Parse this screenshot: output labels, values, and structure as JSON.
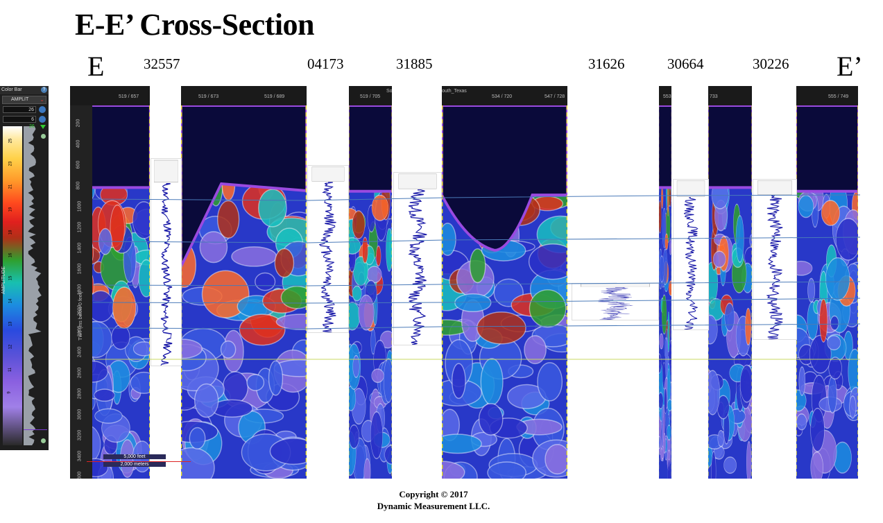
{
  "title": "E-E’ Cross-Section",
  "end_labels": {
    "left": "E",
    "right": "E’"
  },
  "wells": [
    {
      "id": "32557"
    },
    {
      "id": "04173"
    },
    {
      "id": "31885"
    },
    {
      "id": "31626"
    },
    {
      "id": "30664"
    },
    {
      "id": "30226"
    }
  ],
  "color_bar": {
    "title": "Color Bar",
    "attribute": "AMPLIT",
    "max_value": "26",
    "min_value": "6",
    "marker_value": "26",
    "axis_label": "AMPLITUDE",
    "ticks": [
      "25",
      "23",
      "21",
      "19",
      "18",
      "16",
      "15",
      "14",
      "13",
      "12",
      "11",
      "9"
    ]
  },
  "panels": {
    "p1": {
      "header": [
        "519 / 657"
      ]
    },
    "p2": {
      "header": [
        "519 / 673",
        "519 / 689"
      ]
    },
    "p3": {
      "header": [
        "519 / 705",
        "So"
      ]
    },
    "p4": {
      "header": [
        "outh_Texas",
        "534 / 720",
        "547 / 728"
      ]
    },
    "p5": {
      "header": [
        "553"
      ]
    },
    "p6": {
      "header": [
        "733"
      ]
    },
    "p7": {
      "header": [
        "555 / 749"
      ]
    }
  },
  "depth_axis": {
    "title": "TWT (ms below 0 feet)",
    "ticks": [
      "200",
      "400",
      "600",
      "800",
      "1000",
      "1200",
      "1400",
      "1600",
      "1800",
      "2000",
      "2200",
      "2400",
      "2600",
      "2800",
      "3000",
      "3200",
      "3400",
      "3600"
    ]
  },
  "scale_bar": {
    "feet": "5,000 feet",
    "meters": "2,000 meters"
  },
  "copyright": {
    "line1": "Copyright  © 2017",
    "line2": "Dynamic Measurement LLC."
  },
  "colors": {
    "background": "#ffffff",
    "sky": "#0a0a3a",
    "log_trace": "#1a1aa8",
    "horizon": "#4a7ab8",
    "marker": "#e8e020"
  }
}
